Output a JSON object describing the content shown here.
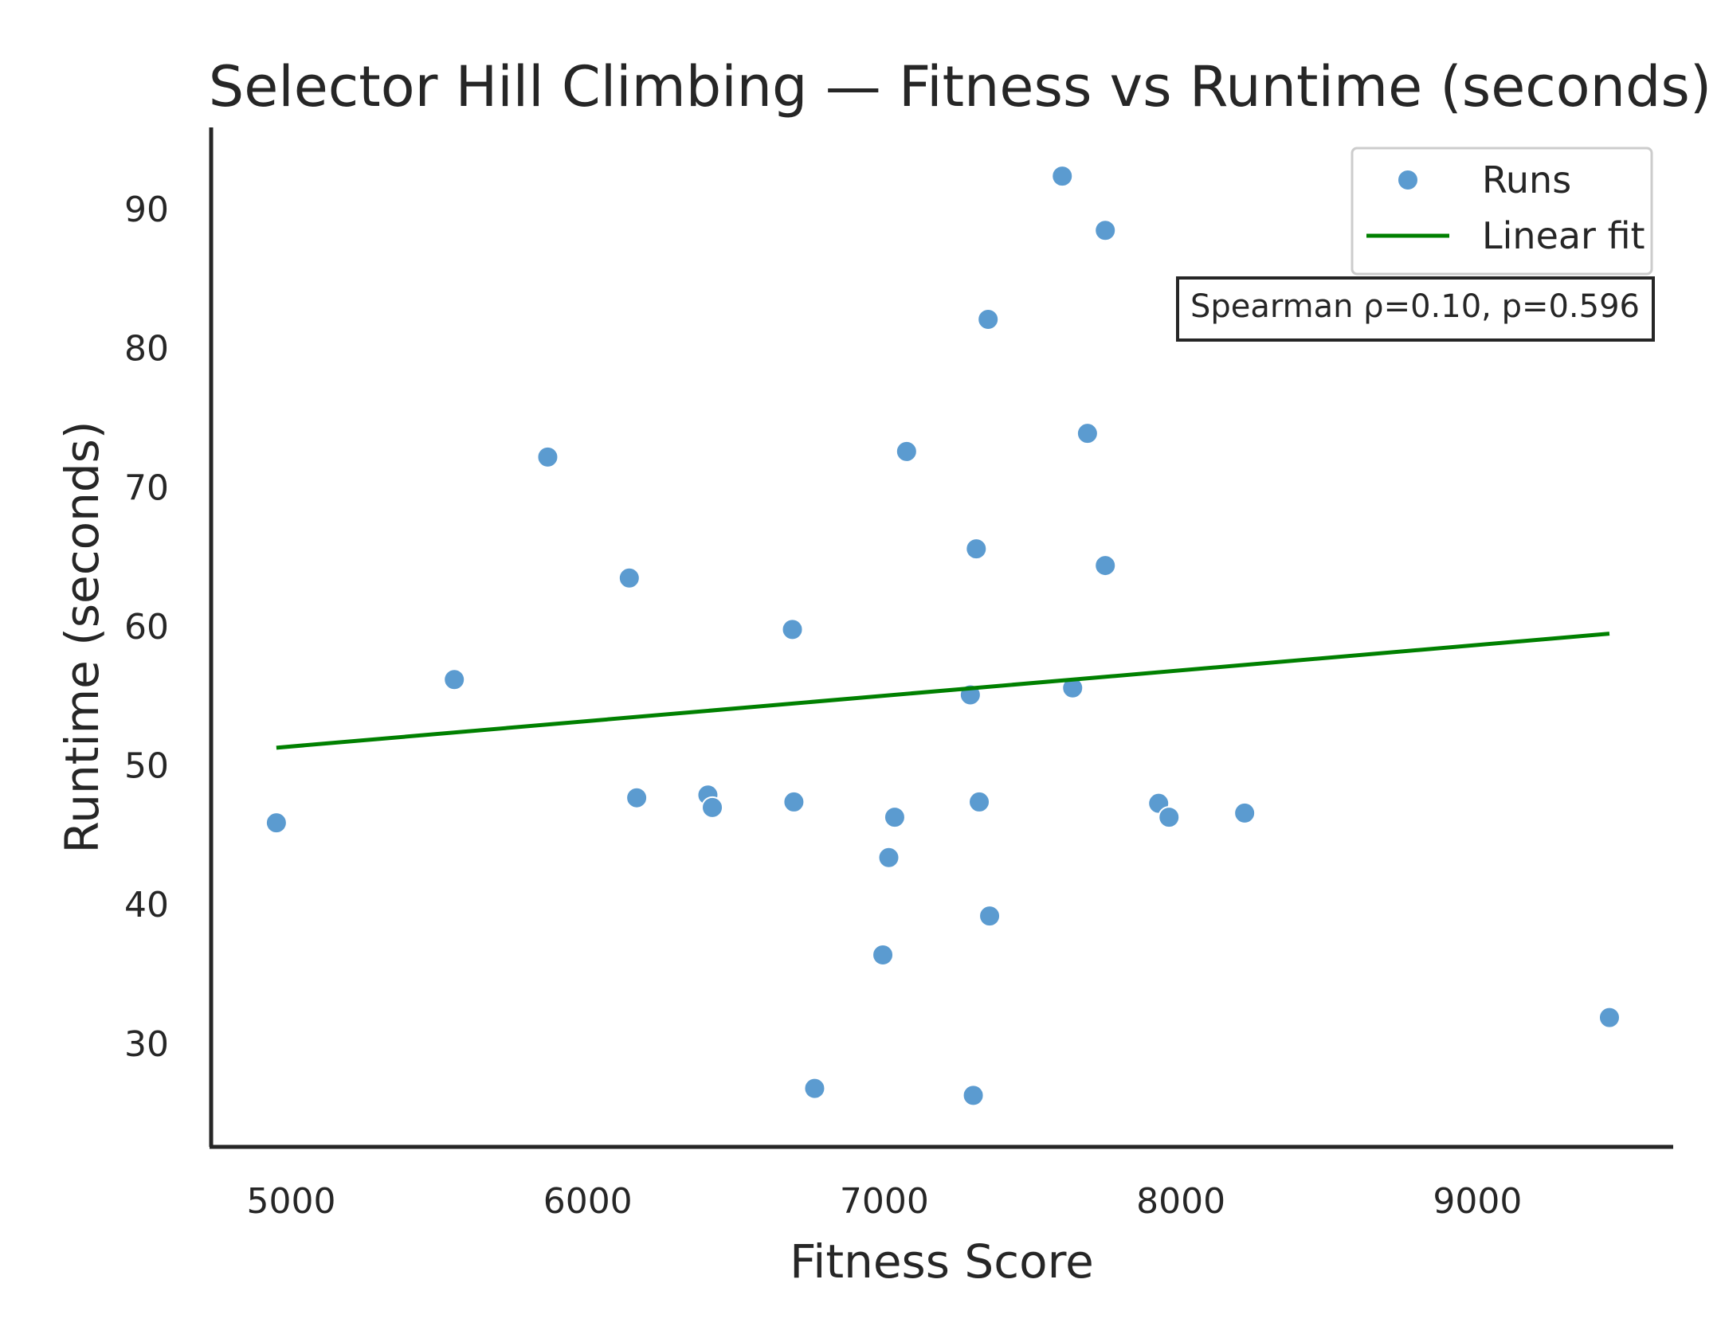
{
  "chart_data": {
    "type": "scatter",
    "title": "Selector Hill Climbing — Fitness vs Runtime (seconds)",
    "xlabel": "Fitness Score",
    "ylabel": "Runtime (seconds)",
    "xlim": [
      4730,
      9660
    ],
    "ylim": [
      22.6,
      95.9
    ],
    "xticks": [
      5000,
      6000,
      7000,
      8000,
      9000
    ],
    "yticks": [
      30,
      40,
      50,
      60,
      70,
      80,
      90
    ],
    "grid": false,
    "legend": {
      "placement": "top-right",
      "entries": [
        "Runs",
        "Linear fit"
      ]
    },
    "annotation": "Spearman ρ=0.10, p=0.596",
    "colors": {
      "points": "#5b9bd0",
      "fit": "#008000",
      "axes": "#262626"
    },
    "series": [
      {
        "name": "Runs",
        "kind": "scatter",
        "points": [
          [
            4950,
            45.9
          ],
          [
            5550,
            56.2
          ],
          [
            5865,
            72.2
          ],
          [
            6140,
            63.5
          ],
          [
            6165,
            47.7
          ],
          [
            6405,
            47.9
          ],
          [
            6420,
            47.0
          ],
          [
            6690,
            59.8
          ],
          [
            6695,
            47.4
          ],
          [
            6765,
            26.8
          ],
          [
            6995,
            36.4
          ],
          [
            7015,
            43.4
          ],
          [
            7035,
            46.3
          ],
          [
            7075,
            72.6
          ],
          [
            7290,
            55.1
          ],
          [
            7300,
            26.3
          ],
          [
            7310,
            65.6
          ],
          [
            7320,
            47.4
          ],
          [
            7350,
            82.1
          ],
          [
            7355,
            39.2
          ],
          [
            7600,
            92.4
          ],
          [
            7635,
            55.6
          ],
          [
            7685,
            73.9
          ],
          [
            7745,
            88.5
          ],
          [
            7745,
            64.4
          ],
          [
            7925,
            47.3
          ],
          [
            7960,
            46.3
          ],
          [
            8215,
            46.6
          ],
          [
            9445,
            31.9
          ]
        ]
      },
      {
        "name": "Linear fit",
        "kind": "line",
        "points": [
          [
            4950,
            51.3
          ],
          [
            9445,
            59.5
          ]
        ]
      }
    ]
  }
}
